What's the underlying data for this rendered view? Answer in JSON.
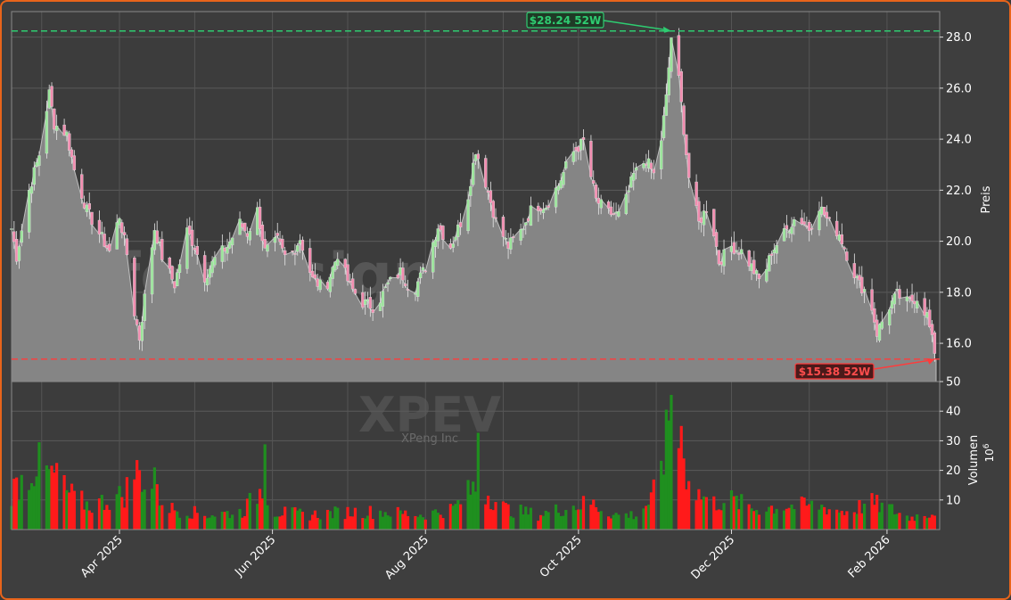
{
  "chart_data": [
    {
      "type": "candlestick",
      "ticker": "XPEV",
      "company": "XPeng Inc",
      "watermark": "forexsignale.trade",
      "ylabel": "Preis",
      "ylim": [
        14.5,
        29.0
      ],
      "yticks": [
        16,
        18,
        20,
        22,
        24,
        26,
        28
      ],
      "x_range": [
        "2025-02-17",
        "2026-02-22"
      ],
      "xtick_labels": [
        {
          "date": "2025-04-01",
          "label": "Apr 2025"
        },
        {
          "date": "2025-06-01",
          "label": "Jun 2025"
        },
        {
          "date": "2025-08-01",
          "label": "Aug 2025"
        },
        {
          "date": "2025-10-01",
          "label": "Oct 2025"
        },
        {
          "date": "2025-12-01",
          "label": "Dec 2025"
        },
        {
          "date": "2026-02-01",
          "label": "Feb 2026"
        }
      ],
      "grid": true,
      "high_52w": {
        "value": 28.24,
        "date": "2025-11-07",
        "label": "$28.24 52W"
      },
      "low_52w": {
        "value": 15.38,
        "date": "2026-02-20",
        "label": "$15.38 52W"
      },
      "close_keypoints": [
        [
          "2025-02-17",
          20.5
        ],
        [
          "2025-02-19",
          19.4
        ],
        [
          "2025-02-24",
          22.0
        ],
        [
          "2025-02-28",
          23.4
        ],
        [
          "2025-03-04",
          25.8
        ],
        [
          "2025-03-06",
          24.6
        ],
        [
          "2025-03-11",
          24.2
        ],
        [
          "2025-03-14",
          22.8
        ],
        [
          "2025-03-19",
          21.2
        ],
        [
          "2025-03-24",
          20.3
        ],
        [
          "2025-03-28",
          19.6
        ],
        [
          "2025-04-01",
          21.0
        ],
        [
          "2025-04-04",
          19.5
        ],
        [
          "2025-04-07",
          17.2
        ],
        [
          "2025-04-09",
          16.2
        ],
        [
          "2025-04-11",
          17.8
        ],
        [
          "2025-04-15",
          20.5
        ],
        [
          "2025-04-18",
          19.4
        ],
        [
          "2025-04-23",
          18.3
        ],
        [
          "2025-04-28",
          20.4
        ],
        [
          "2025-05-01",
          19.8
        ],
        [
          "2025-05-05",
          18.6
        ],
        [
          "2025-05-09",
          19.3
        ],
        [
          "2025-05-14",
          19.8
        ],
        [
          "2025-05-19",
          20.7
        ],
        [
          "2025-05-22",
          20.3
        ],
        [
          "2025-05-26",
          21.2
        ],
        [
          "2025-05-29",
          19.6
        ],
        [
          "2025-06-03",
          20.0
        ],
        [
          "2025-06-07",
          19.2
        ],
        [
          "2025-06-12",
          20.1
        ],
        [
          "2025-06-17",
          18.5
        ],
        [
          "2025-06-22",
          18.1
        ],
        [
          "2025-06-27",
          19.5
        ],
        [
          "2025-07-02",
          18.2
        ],
        [
          "2025-07-07",
          17.6
        ],
        [
          "2025-07-12",
          17.4
        ],
        [
          "2025-07-17",
          18.3
        ],
        [
          "2025-07-22",
          18.8
        ],
        [
          "2025-07-27",
          18.0
        ],
        [
          "2025-08-01",
          19.0
        ],
        [
          "2025-08-06",
          20.6
        ],
        [
          "2025-08-11",
          19.8
        ],
        [
          "2025-08-17",
          21.2
        ],
        [
          "2025-08-21",
          23.6
        ],
        [
          "2025-08-25",
          22.3
        ],
        [
          "2025-08-29",
          20.8
        ],
        [
          "2025-09-03",
          19.8
        ],
        [
          "2025-09-08",
          20.4
        ],
        [
          "2025-09-13",
          21.4
        ],
        [
          "2025-09-18",
          21.4
        ],
        [
          "2025-09-23",
          22.2
        ],
        [
          "2025-09-28",
          23.4
        ],
        [
          "2025-10-03",
          23.9
        ],
        [
          "2025-10-08",
          21.6
        ],
        [
          "2025-10-13",
          21.1
        ],
        [
          "2025-10-18",
          21.0
        ],
        [
          "2025-10-23",
          22.6
        ],
        [
          "2025-10-28",
          23.2
        ],
        [
          "2025-11-01",
          22.4
        ],
        [
          "2025-11-05",
          25.6
        ],
        [
          "2025-11-07",
          28.0
        ],
        [
          "2025-11-10",
          26.3
        ],
        [
          "2025-11-14",
          22.5
        ],
        [
          "2025-11-18",
          20.7
        ],
        [
          "2025-11-22",
          21.5
        ],
        [
          "2025-11-26",
          19.2
        ],
        [
          "2025-12-01",
          19.8
        ],
        [
          "2025-12-05",
          19.6
        ],
        [
          "2025-12-09",
          19.0
        ],
        [
          "2025-12-13",
          18.3
        ],
        [
          "2025-12-17",
          19.6
        ],
        [
          "2025-12-22",
          20.3
        ],
        [
          "2025-12-27",
          21.0
        ],
        [
          "2026-01-01",
          20.5
        ],
        [
          "2026-01-05",
          21.4
        ],
        [
          "2026-01-09",
          20.7
        ],
        [
          "2026-01-13",
          20.3
        ],
        [
          "2026-01-17",
          19.2
        ],
        [
          "2026-01-21",
          18.3
        ],
        [
          "2026-01-25",
          17.9
        ],
        [
          "2026-01-28",
          16.4
        ],
        [
          "2026-02-01",
          17.3
        ],
        [
          "2026-02-05",
          17.9
        ],
        [
          "2026-02-09",
          17.6
        ],
        [
          "2026-02-13",
          17.8
        ],
        [
          "2026-02-17",
          17.1
        ],
        [
          "2026-02-20",
          15.6
        ]
      ]
    },
    {
      "type": "bar",
      "ylabel": "Volumen",
      "unit_label": "1e6",
      "ylim": [
        0,
        50
      ],
      "yticks": [
        10,
        20,
        30,
        40,
        50
      ],
      "up_color": "#1f8f1f",
      "down_color": "#ff1a1a",
      "volume_keypoints": [
        [
          "2025-02-17",
          13
        ],
        [
          "2025-02-27",
          22
        ],
        [
          "2025-03-05",
          18
        ],
        [
          "2025-03-12",
          12
        ],
        [
          "2025-03-20",
          8
        ],
        [
          "2025-03-31",
          11
        ],
        [
          "2025-04-03",
          12
        ],
        [
          "2025-04-07",
          20
        ],
        [
          "2025-04-10",
          18
        ],
        [
          "2025-04-14",
          13
        ],
        [
          "2025-04-22",
          7
        ],
        [
          "2025-05-06",
          5
        ],
        [
          "2025-05-20",
          6
        ],
        [
          "2025-05-28",
          14
        ],
        [
          "2025-06-02",
          6
        ],
        [
          "2025-06-16",
          5
        ],
        [
          "2025-07-01",
          6
        ],
        [
          "2025-07-15",
          6
        ],
        [
          "2025-07-31",
          5
        ],
        [
          "2025-08-12",
          7
        ],
        [
          "2025-08-20",
          14
        ],
        [
          "2025-08-26",
          12
        ],
        [
          "2025-09-02",
          7
        ],
        [
          "2025-09-15",
          5
        ],
        [
          "2025-09-29",
          8
        ],
        [
          "2025-10-06",
          9
        ],
        [
          "2025-10-15",
          5
        ],
        [
          "2025-10-24",
          5
        ],
        [
          "2025-10-30",
          10
        ],
        [
          "2025-11-05",
          23
        ],
        [
          "2025-11-07",
          30
        ],
        [
          "2025-11-12",
          22
        ],
        [
          "2025-11-18",
          12
        ],
        [
          "2025-11-24",
          9
        ],
        [
          "2025-12-01",
          10
        ],
        [
          "2025-12-10",
          7
        ],
        [
          "2025-12-22",
          8
        ],
        [
          "2026-01-05",
          8
        ],
        [
          "2026-01-15",
          6
        ],
        [
          "2026-01-26",
          9
        ],
        [
          "2026-02-02",
          7
        ],
        [
          "2026-02-10",
          4
        ],
        [
          "2026-02-20",
          6
        ]
      ],
      "spikes": [
        [
          "2025-02-28",
          29.5,
          "up"
        ],
        [
          "2025-03-07",
          22.5,
          "down"
        ],
        [
          "2025-04-15",
          21,
          "up"
        ],
        [
          "2025-05-29",
          28.8,
          "up"
        ],
        [
          "2025-08-22",
          32.7,
          "up"
        ],
        [
          "2025-11-05",
          40.5,
          "up"
        ],
        [
          "2025-11-07",
          45.5,
          "up"
        ],
        [
          "2025-11-10",
          27.5,
          "down"
        ],
        [
          "2025-11-11",
          35,
          "down"
        ]
      ]
    }
  ]
}
